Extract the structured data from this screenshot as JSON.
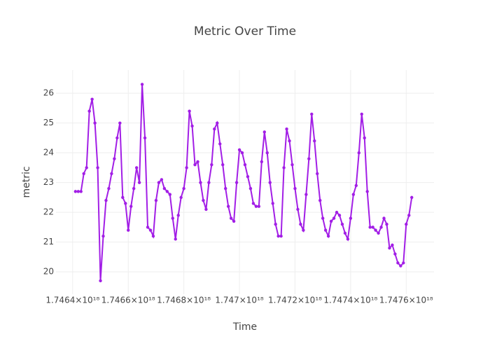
{
  "chart_data": {
    "type": "line",
    "title": "Metric Over Time",
    "x_label": "Time",
    "y_label": "metric",
    "x": [
      1.74641e+18,
      1.74642e+18,
      1.74643e+18,
      1.74644e+18,
      1.74645e+18,
      1.74646e+18,
      1.74647e+18,
      1.74648e+18,
      1.74649e+18,
      1.7465e+18,
      1.74651e+18,
      1.74652e+18,
      1.74653e+18,
      1.74654e+18,
      1.74655e+18,
      1.74656e+18,
      1.74657e+18,
      1.74658e+18,
      1.74659e+18,
      1.7466e+18,
      1.74661e+18,
      1.74662e+18,
      1.74663e+18,
      1.74664e+18,
      1.74665e+18,
      1.74666e+18,
      1.74667e+18,
      1.74668e+18,
      1.74669e+18,
      1.7467e+18,
      1.74671e+18,
      1.74672e+18,
      1.74673e+18,
      1.74674e+18,
      1.74675e+18,
      1.74676e+18,
      1.74677e+18,
      1.74678e+18,
      1.74679e+18,
      1.7468e+18,
      1.74681e+18,
      1.74682e+18,
      1.74683e+18,
      1.74684e+18,
      1.74685e+18,
      1.74686e+18,
      1.74687e+18,
      1.74688e+18,
      1.74689e+18,
      1.7469e+18,
      1.74691e+18,
      1.74692e+18,
      1.74693e+18,
      1.74694e+18,
      1.74695e+18,
      1.74696e+18,
      1.74697e+18,
      1.74698e+18,
      1.74699e+18,
      1.747e+18,
      1.74701e+18,
      1.74702e+18,
      1.74703e+18,
      1.74704e+18,
      1.74705e+18,
      1.74706e+18,
      1.74707e+18,
      1.74708e+18,
      1.74709e+18,
      1.7471e+18,
      1.74711e+18,
      1.74712e+18,
      1.74713e+18,
      1.74714e+18,
      1.74715e+18,
      1.74716e+18,
      1.74717e+18,
      1.74718e+18,
      1.74719e+18,
      1.7472e+18,
      1.74721e+18,
      1.74722e+18,
      1.74723e+18,
      1.74724e+18,
      1.74725e+18,
      1.74726e+18,
      1.74727e+18,
      1.74728e+18,
      1.74729e+18,
      1.7473e+18,
      1.74731e+18,
      1.74732e+18,
      1.74733e+18,
      1.74734e+18,
      1.74735e+18,
      1.74736e+18,
      1.74737e+18,
      1.74738e+18,
      1.74739e+18,
      1.7474e+18,
      1.74741e+18,
      1.74742e+18,
      1.74743e+18,
      1.74744e+18,
      1.74745e+18,
      1.74746e+18,
      1.74747e+18,
      1.74748e+18,
      1.74749e+18,
      1.7475e+18,
      1.74751e+18,
      1.74752e+18,
      1.74753e+18,
      1.74754e+18,
      1.74755e+18,
      1.74756e+18,
      1.74757e+18,
      1.74758e+18,
      1.74759e+18,
      1.7476e+18,
      1.74761e+18,
      1.74762e+18
    ],
    "series": [
      {
        "name": "metric",
        "color": "#a21ee6",
        "values": [
          22.7,
          22.7,
          22.7,
          23.3,
          23.5,
          25.4,
          25.8,
          25.0,
          23.5,
          19.7,
          21.2,
          22.4,
          22.8,
          23.3,
          23.8,
          24.5,
          25.0,
          22.5,
          22.3,
          21.4,
          22.2,
          22.8,
          23.5,
          23.0,
          26.3,
          24.5,
          21.5,
          21.4,
          21.2,
          22.4,
          23.0,
          23.1,
          22.8,
          22.7,
          22.6,
          21.8,
          21.1,
          21.9,
          22.5,
          22.8,
          23.5,
          25.4,
          24.9,
          23.6,
          23.7,
          23.0,
          22.4,
          22.1,
          23.0,
          23.6,
          24.8,
          25.0,
          24.3,
          23.6,
          22.8,
          22.2,
          21.8,
          21.7,
          23.0,
          24.1,
          24.0,
          23.6,
          23.2,
          22.8,
          22.3,
          22.2,
          22.2,
          23.7,
          24.7,
          24.0,
          23.0,
          22.3,
          21.6,
          21.2,
          21.2,
          23.5,
          24.8,
          24.4,
          23.6,
          22.8,
          22.1,
          21.6,
          21.4,
          22.6,
          23.8,
          25.3,
          24.4,
          23.3,
          22.4,
          21.8,
          21.4,
          21.2,
          21.7,
          21.8,
          22.0,
          21.9,
          21.6,
          21.3,
          21.1,
          21.8,
          22.6,
          22.9,
          24.0,
          25.3,
          24.5,
          22.7,
          21.5,
          21.5,
          21.4,
          21.3,
          21.5,
          21.8,
          21.6,
          20.8,
          20.9,
          20.6,
          20.3,
          20.2,
          20.3,
          21.6,
          21.9,
          22.5
        ]
      }
    ],
    "xlim": [
      1.74634e+18,
      1.7477e+18
    ],
    "xticks": [
      {
        "value": 1.7464e+18,
        "label": "1.7464×10¹⁸"
      },
      {
        "value": 1.7466e+18,
        "label": "1.7466×10¹⁸"
      },
      {
        "value": 1.7468e+18,
        "label": "1.7468×10¹⁸"
      },
      {
        "value": 1.747e+18,
        "label": "1.747×10¹⁸"
      },
      {
        "value": 1.7472e+18,
        "label": "1.7472×10¹⁸"
      },
      {
        "value": 1.7474e+18,
        "label": "1.7474×10¹⁸"
      },
      {
        "value": 1.7476e+18,
        "label": "1.7476×10¹⁸"
      }
    ],
    "ylim": [
      19.25,
      26.78
    ],
    "yticks": [
      20,
      21,
      22,
      23,
      24,
      25,
      26
    ],
    "grid": true
  }
}
